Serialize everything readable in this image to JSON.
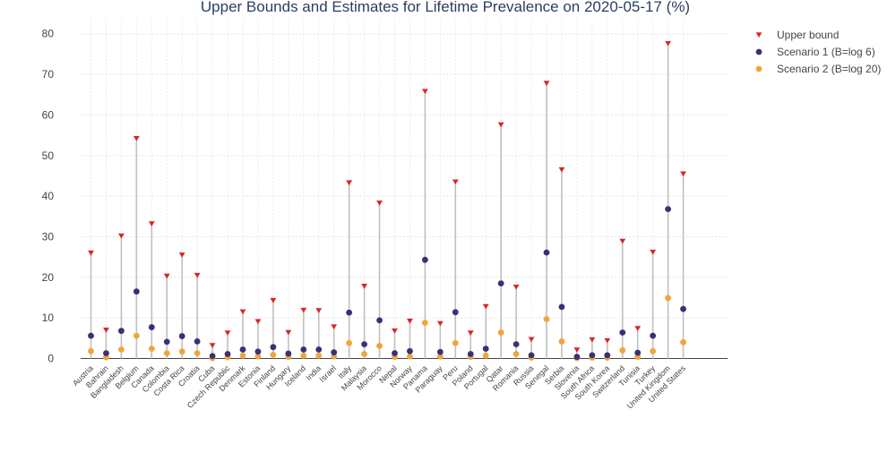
{
  "chart_data": {
    "type": "scatter",
    "title": "Upper Bounds and Estimates for Lifetime Prevalence on 2020-05-17 (%)",
    "xlabel": "",
    "ylabel": "",
    "ylim": [
      -2,
      85
    ],
    "yticks": [
      0,
      10,
      20,
      30,
      40,
      50,
      60,
      70,
      80
    ],
    "grid": true,
    "legend_position": "top-right",
    "categories": [
      "Austria",
      "Bahrain",
      "Bangladesh",
      "Belgium",
      "Canada",
      "Colombia",
      "Costa Rica",
      "Croatia",
      "Cuba",
      "Czech Republic",
      "Denmark",
      "Estonia",
      "Finland",
      "Hungary",
      "Iceland",
      "India",
      "Israel",
      "Italy",
      "Malaysia",
      "Morocco",
      "Nepal",
      "Norway",
      "Panama",
      "Paraguay",
      "Peru",
      "Poland",
      "Portugal",
      "Qatar",
      "Romania",
      "Russia",
      "Senegal",
      "Serbia",
      "Slovenia",
      "South Africa",
      "South Korea",
      "Switzerland",
      "Tunisia",
      "Turkey",
      "United Kingdom",
      "United States"
    ],
    "series": [
      {
        "name": "Upper bound",
        "marker": "triangle-down",
        "color": "#d62728",
        "values": [
          26,
          7,
          30.2,
          54.2,
          33.2,
          20.3,
          25.5,
          20.5,
          3.2,
          6.3,
          11.5,
          9.1,
          14.3,
          6.4,
          11.9,
          11.8,
          7.8,
          43.3,
          17.8,
          38.3,
          6.8,
          9.2,
          65.8,
          8.6,
          43.5,
          6.3,
          12.8,
          57.6,
          17.6,
          4.7,
          67.8,
          46.5,
          2.1,
          4.6,
          4.4,
          28.9,
          7.4,
          26.2,
          77.6,
          45.5
        ]
      },
      {
        "name": "Scenario 1 (B=log 6)",
        "marker": "circle",
        "color": "#3a3078",
        "values": [
          5.6,
          1.3,
          6.8,
          16.5,
          7.7,
          4.1,
          5.5,
          4.2,
          0.6,
          1.1,
          2.2,
          1.7,
          2.8,
          1.2,
          2.2,
          2.2,
          1.5,
          11.3,
          3.5,
          9.4,
          1.3,
          1.8,
          24.3,
          1.6,
          11.4,
          1.1,
          2.4,
          18.5,
          3.5,
          0.8,
          26.1,
          12.7,
          0.4,
          0.8,
          0.8,
          6.4,
          1.4,
          5.6,
          36.8,
          12.2
        ]
      },
      {
        "name": "Scenario 2 (B=log 20)",
        "marker": "circle",
        "color": "#f0a53c",
        "values": [
          1.8,
          0.3,
          2.2,
          5.6,
          2.4,
          1.3,
          1.7,
          1.3,
          0.1,
          0.3,
          0.7,
          0.5,
          0.9,
          0.4,
          0.7,
          0.7,
          0.5,
          3.8,
          1.1,
          3.1,
          0.4,
          0.5,
          8.8,
          0.5,
          3.8,
          0.4,
          0.7,
          6.4,
          1.1,
          0.2,
          9.7,
          4.2,
          0.1,
          0.2,
          0.2,
          2.0,
          0.4,
          1.8,
          14.9,
          4.0
        ]
      }
    ],
    "connector_color": "#c0c0c0"
  }
}
